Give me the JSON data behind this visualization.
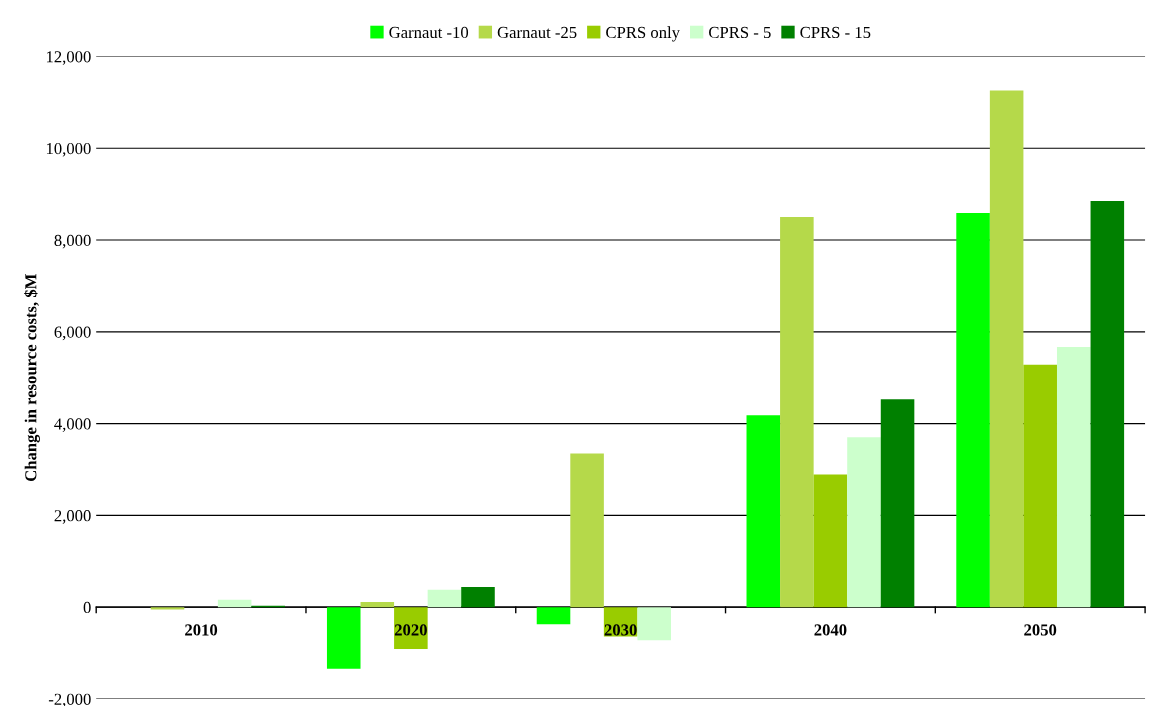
{
  "chart_data": {
    "type": "bar",
    "ylabel": "Change in resource costs, $M",
    "categories": [
      "2010",
      "2020",
      "2030",
      "2040",
      "2050"
    ],
    "series": [
      {
        "name": "Garnaut -10",
        "color": "#00ff00",
        "values": [
          0,
          -1340,
          -370,
          4180,
          8590
        ]
      },
      {
        "name": "Garnaut -25",
        "color": "#b5d94a",
        "values": [
          -50,
          110,
          3350,
          8500,
          11260
        ]
      },
      {
        "name": "CPRS only",
        "color": "#99cc00",
        "values": [
          0,
          -910,
          -640,
          2890,
          5280
        ]
      },
      {
        "name": "CPRS - 5",
        "color": "#ccffcc",
        "values": [
          160,
          380,
          -720,
          3700,
          5670
        ]
      },
      {
        "name": "CPRS - 15",
        "color": "#008000",
        "values": [
          30,
          440,
          0,
          4530,
          8850
        ]
      }
    ],
    "ylim": [
      -2000,
      12000
    ],
    "yticks": [
      {
        "value": -2000,
        "label": "-2,000"
      },
      {
        "value": 0,
        "label": "0"
      },
      {
        "value": 2000,
        "label": "2,000"
      },
      {
        "value": 4000,
        "label": "4,000"
      },
      {
        "value": 6000,
        "label": "6,000"
      },
      {
        "value": 8000,
        "label": "8,000"
      },
      {
        "value": 10000,
        "label": "10,000"
      },
      {
        "value": 12000,
        "label": "12,000"
      }
    ],
    "grid": "y",
    "legend": "top"
  }
}
